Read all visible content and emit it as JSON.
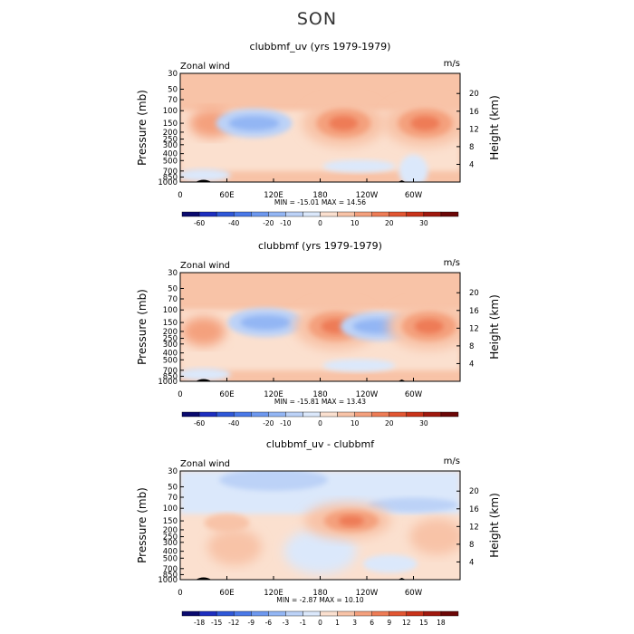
{
  "figure": {
    "title": "SON"
  },
  "chart_data": [
    {
      "type": "heatmap",
      "title": "clubbmf_uv (yrs 1979-1979)",
      "left_label": "Zonal wind",
      "units": "m/s",
      "ylabel": "Pressure (mb)",
      "ylabel_right": "Height (km)",
      "x_ticks": [
        "0",
        "60E",
        "120E",
        "180",
        "120W",
        "60W"
      ],
      "y_ticks": [
        "30",
        "50",
        "70",
        "100",
        "150",
        "200",
        "250",
        "300",
        "400",
        "500",
        "700",
        "850",
        "1000"
      ],
      "y_right_ticks": [
        "20",
        "16",
        "12",
        "8",
        "4"
      ],
      "stats": "MIN = -15.01   MAX =  14.56",
      "colorbar_labels": [
        "-60",
        "-40",
        "-20",
        "-10",
        "0",
        "10",
        "20",
        "30"
      ],
      "features": [
        {
          "lon": 40,
          "p": 150,
          "value": 5
        },
        {
          "lon": 95,
          "p": 150,
          "value": -10
        },
        {
          "lon": 210,
          "p": 150,
          "value": 15
        },
        {
          "lon": 315,
          "p": 150,
          "value": 14
        },
        {
          "lon": 300,
          "p": 700,
          "value": -3
        }
      ]
    },
    {
      "type": "heatmap",
      "title": "clubbmf (yrs 1979-1979)",
      "left_label": "Zonal wind",
      "units": "m/s",
      "ylabel": "Pressure (mb)",
      "ylabel_right": "Height (km)",
      "x_ticks": [
        "0",
        "60E",
        "120E",
        "180",
        "120W",
        "60W"
      ],
      "y_ticks": [
        "30",
        "50",
        "70",
        "100",
        "150",
        "200",
        "250",
        "300",
        "400",
        "500",
        "700",
        "850",
        "1000"
      ],
      "y_right_ticks": [
        "20",
        "16",
        "12",
        "8",
        "4"
      ],
      "stats": "MIN = -15.81   MAX =  13.43",
      "colorbar_labels": [
        "-60",
        "-40",
        "-20",
        "-10",
        "0",
        "10",
        "20",
        "30"
      ],
      "features": [
        {
          "lon": 30,
          "p": 200,
          "value": 3
        },
        {
          "lon": 110,
          "p": 150,
          "value": -12
        },
        {
          "lon": 200,
          "p": 170,
          "value": 12
        },
        {
          "lon": 255,
          "p": 170,
          "value": -8
        },
        {
          "lon": 320,
          "p": 170,
          "value": 13
        }
      ]
    },
    {
      "type": "heatmap",
      "title": "clubbmf_uv - clubbmf",
      "left_label": "Zonal wind",
      "units": "m/s",
      "ylabel": "Pressure (mb)",
      "ylabel_right": "Height (km)",
      "x_ticks": [
        "0",
        "60E",
        "120E",
        "180",
        "120W",
        "60W"
      ],
      "y_ticks": [
        "30",
        "50",
        "70",
        "100",
        "150",
        "200",
        "250",
        "300",
        "400",
        "500",
        "700",
        "850",
        "1000"
      ],
      "y_right_ticks": [
        "20",
        "16",
        "12",
        "8",
        "4"
      ],
      "stats": "MIN =  -2.87   MAX =  10.10",
      "colorbar_labels": [
        "-18",
        "-15",
        "-12",
        "-9",
        "-6",
        "-3",
        "-1",
        "0",
        "1",
        "3",
        "6",
        "9",
        "12",
        "15",
        "18"
      ],
      "features": [
        {
          "lon": 220,
          "p": 150,
          "value": 9
        },
        {
          "lon": 180,
          "p": 50,
          "value": -2
        },
        {
          "lon": 40,
          "p": 300,
          "value": 2
        }
      ]
    }
  ],
  "colors": {
    "cb_main": [
      "#0a0a6e",
      "#1d2ebf",
      "#2f58d8",
      "#4a79e8",
      "#6d98ef",
      "#93b6f4",
      "#bcd2f7",
      "#dbe8fb",
      "#fbe0cf",
      "#f8c3a7",
      "#f4a07d",
      "#ee7c56",
      "#e25632",
      "#c9331a",
      "#a0180e",
      "#6c0707"
    ],
    "cb_diff": [
      "#0a0a6e",
      "#1d2ebf",
      "#2f58d8",
      "#4a79e8",
      "#6d98ef",
      "#93b6f4",
      "#bcd2f7",
      "#dbe8fb",
      "#fbe0cf",
      "#f8c3a7",
      "#f4a07d",
      "#ee7c56",
      "#e25632",
      "#c9331a",
      "#a0180e",
      "#6c0707"
    ]
  }
}
